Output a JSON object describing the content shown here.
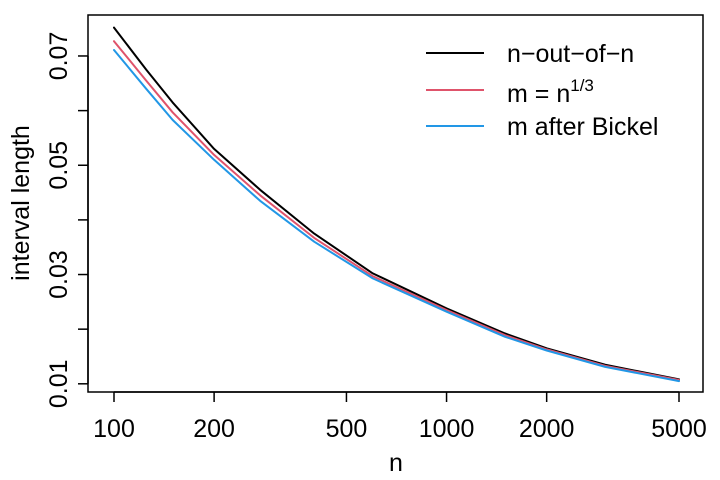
{
  "chart_data": {
    "type": "line",
    "title": "",
    "xlabel": "n",
    "ylabel": "interval length",
    "xscale": "log",
    "xlim": [
      100,
      5000
    ],
    "ylim": [
      0.0085,
      0.0775
    ],
    "x_ticks": [
      100,
      200,
      500,
      1000,
      2000,
      5000
    ],
    "x_tick_labels": [
      "100",
      "200",
      "500",
      "1000",
      "2000",
      "5000"
    ],
    "y_ticks": [
      0.01,
      0.02,
      0.03,
      0.04,
      0.05,
      0.06,
      0.07
    ],
    "y_tick_labels": [
      "0.01",
      "",
      "0.03",
      "",
      "0.05",
      "",
      "0.07"
    ],
    "legend_position": "top-right",
    "x": [
      100,
      125,
      150,
      200,
      275,
      400,
      600,
      1000,
      1500,
      2000,
      3000,
      5000
    ],
    "series": [
      {
        "name": "n−out−of−n",
        "color": "#000000",
        "values": [
          0.0752,
          0.0675,
          0.0615,
          0.053,
          0.0455,
          0.0375,
          0.0302,
          0.0238,
          0.0192,
          0.0165,
          0.0135,
          0.0108
        ]
      },
      {
        "name": "m = n^(1/3)",
        "color": "#df536b",
        "values": [
          0.0727,
          0.0655,
          0.0597,
          0.0519,
          0.0445,
          0.0367,
          0.0297,
          0.0235,
          0.0189,
          0.0163,
          0.0133,
          0.0107
        ]
      },
      {
        "name": "m after Bickel",
        "color": "#2297e6",
        "values": [
          0.0711,
          0.064,
          0.0583,
          0.051,
          0.0435,
          0.036,
          0.0293,
          0.0232,
          0.0186,
          0.0161,
          0.0131,
          0.0105
        ]
      }
    ],
    "legend": {
      "entries": [
        {
          "label": "n−out−of−n",
          "color": "#000000"
        },
        {
          "label_base": "m = n",
          "label_superscript": "1/3",
          "color": "#df536b"
        },
        {
          "label": "m after Bickel",
          "color": "#2297e6"
        }
      ]
    }
  }
}
